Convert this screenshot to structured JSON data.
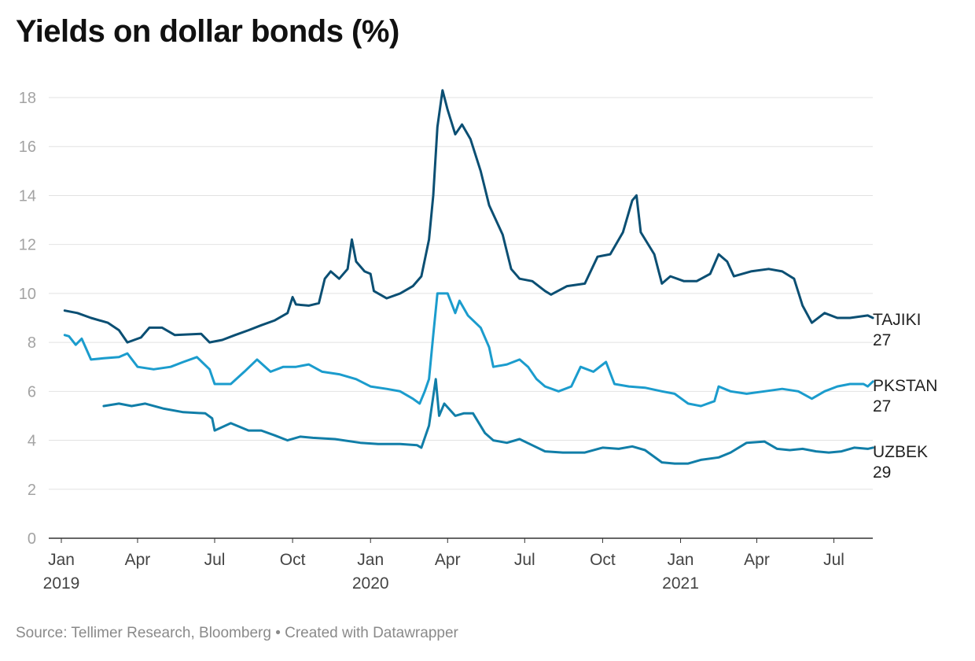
{
  "title": "Yields on dollar bonds (%)",
  "footer": {
    "source": "Source: Tellimer Research, Bloomberg",
    "separator": "•",
    "credit": "Created with Datawrapper"
  },
  "chart_data": {
    "type": "line",
    "title": "Yields on dollar bonds (%)",
    "ylim": [
      0,
      18
    ],
    "yticks": [
      0,
      2,
      4,
      6,
      8,
      10,
      12,
      14,
      16,
      18
    ],
    "grid": true,
    "legend": "inline labels at right end of lines",
    "xlim": [
      "2019-01-01",
      "2021-08-31"
    ],
    "xticks": [
      {
        "date": "2019-01-01",
        "label": "Jan",
        "year": "2019"
      },
      {
        "date": "2019-04-01",
        "label": "Apr",
        "year": ""
      },
      {
        "date": "2019-07-01",
        "label": "Jul",
        "year": ""
      },
      {
        "date": "2019-10-01",
        "label": "Oct",
        "year": ""
      },
      {
        "date": "2020-01-01",
        "label": "Jan",
        "year": "2020"
      },
      {
        "date": "2020-04-01",
        "label": "Apr",
        "year": ""
      },
      {
        "date": "2020-07-01",
        "label": "Jul",
        "year": ""
      },
      {
        "date": "2020-10-01",
        "label": "Oct",
        "year": ""
      },
      {
        "date": "2021-01-01",
        "label": "Jan",
        "year": "2021"
      },
      {
        "date": "2021-04-01",
        "label": "Apr",
        "year": ""
      },
      {
        "date": "2021-07-01",
        "label": "Jul",
        "year": ""
      }
    ],
    "series": [
      {
        "name": "TAJIKI 27",
        "label_lines": [
          "TAJIKI",
          "27"
        ],
        "color": "#0b4f73",
        "points": [
          [
            "2019-01-05",
            9.3
          ],
          [
            "2019-01-20",
            9.2
          ],
          [
            "2019-02-05",
            9.0
          ],
          [
            "2019-02-25",
            8.8
          ],
          [
            "2019-03-10",
            8.5
          ],
          [
            "2019-03-20",
            8.0
          ],
          [
            "2019-04-05",
            8.2
          ],
          [
            "2019-04-15",
            8.6
          ],
          [
            "2019-04-30",
            8.6
          ],
          [
            "2019-05-15",
            8.3
          ],
          [
            "2019-06-15",
            8.35
          ],
          [
            "2019-06-25",
            8.0
          ],
          [
            "2019-07-10",
            8.1
          ],
          [
            "2019-07-25",
            8.3
          ],
          [
            "2019-08-10",
            8.5
          ],
          [
            "2019-08-25",
            8.7
          ],
          [
            "2019-09-10",
            8.9
          ],
          [
            "2019-09-25",
            9.2
          ],
          [
            "2019-10-01",
            9.85
          ],
          [
            "2019-10-05",
            9.55
          ],
          [
            "2019-10-20",
            9.5
          ],
          [
            "2019-11-01",
            9.6
          ],
          [
            "2019-11-08",
            10.6
          ],
          [
            "2019-11-15",
            10.9
          ],
          [
            "2019-11-25",
            10.6
          ],
          [
            "2019-12-05",
            11.0
          ],
          [
            "2019-12-10",
            12.2
          ],
          [
            "2019-12-15",
            11.3
          ],
          [
            "2019-12-25",
            10.9
          ],
          [
            "2020-01-01",
            10.8
          ],
          [
            "2020-01-05",
            10.1
          ],
          [
            "2020-01-20",
            9.8
          ],
          [
            "2020-02-05",
            10.0
          ],
          [
            "2020-02-20",
            10.3
          ],
          [
            "2020-03-01",
            10.7
          ],
          [
            "2020-03-10",
            12.2
          ],
          [
            "2020-03-15",
            14.0
          ],
          [
            "2020-03-20",
            16.8
          ],
          [
            "2020-03-26",
            18.3
          ],
          [
            "2020-04-01",
            17.5
          ],
          [
            "2020-04-10",
            16.5
          ],
          [
            "2020-04-18",
            16.9
          ],
          [
            "2020-04-28",
            16.3
          ],
          [
            "2020-05-10",
            15.0
          ],
          [
            "2020-05-20",
            13.6
          ],
          [
            "2020-06-05",
            12.4
          ],
          [
            "2020-06-15",
            11.0
          ],
          [
            "2020-06-25",
            10.6
          ],
          [
            "2020-07-10",
            10.5
          ],
          [
            "2020-07-25",
            10.1
          ],
          [
            "2020-08-01",
            9.95
          ],
          [
            "2020-08-20",
            10.3
          ],
          [
            "2020-09-10",
            10.4
          ],
          [
            "2020-09-25",
            11.5
          ],
          [
            "2020-10-10",
            11.6
          ],
          [
            "2020-10-25",
            12.5
          ],
          [
            "2020-11-05",
            13.8
          ],
          [
            "2020-11-10",
            14.0
          ],
          [
            "2020-11-15",
            12.5
          ],
          [
            "2020-12-01",
            11.6
          ],
          [
            "2020-12-10",
            10.4
          ],
          [
            "2020-12-20",
            10.7
          ],
          [
            "2021-01-05",
            10.5
          ],
          [
            "2021-01-20",
            10.5
          ],
          [
            "2021-02-05",
            10.8
          ],
          [
            "2021-02-15",
            11.6
          ],
          [
            "2021-02-25",
            11.3
          ],
          [
            "2021-03-05",
            10.7
          ],
          [
            "2021-03-25",
            10.9
          ],
          [
            "2021-04-15",
            11.0
          ],
          [
            "2021-05-01",
            10.9
          ],
          [
            "2021-05-15",
            10.6
          ],
          [
            "2021-05-25",
            9.5
          ],
          [
            "2021-06-05",
            8.8
          ],
          [
            "2021-06-20",
            9.2
          ],
          [
            "2021-07-05",
            9.0
          ],
          [
            "2021-07-20",
            9.0
          ],
          [
            "2021-08-10",
            9.1
          ],
          [
            "2021-08-16",
            9.0
          ]
        ]
      },
      {
        "name": "PKSTAN 27",
        "label_lines": [
          "PKSTAN",
          "27"
        ],
        "color": "#1b9ccd",
        "points": [
          [
            "2019-01-05",
            8.3
          ],
          [
            "2019-01-10",
            8.25
          ],
          [
            "2019-01-18",
            7.9
          ],
          [
            "2019-01-25",
            8.15
          ],
          [
            "2019-02-05",
            7.3
          ],
          [
            "2019-02-20",
            7.35
          ],
          [
            "2019-03-10",
            7.4
          ],
          [
            "2019-03-20",
            7.55
          ],
          [
            "2019-04-01",
            7.0
          ],
          [
            "2019-04-20",
            6.9
          ],
          [
            "2019-05-10",
            7.0
          ],
          [
            "2019-05-25",
            7.2
          ],
          [
            "2019-06-10",
            7.4
          ],
          [
            "2019-06-25",
            6.9
          ],
          [
            "2019-07-01",
            6.3
          ],
          [
            "2019-07-20",
            6.3
          ],
          [
            "2019-08-05",
            6.8
          ],
          [
            "2019-08-20",
            7.3
          ],
          [
            "2019-09-05",
            6.8
          ],
          [
            "2019-09-20",
            7.0
          ],
          [
            "2019-10-05",
            7.0
          ],
          [
            "2019-10-20",
            7.1
          ],
          [
            "2019-11-05",
            6.8
          ],
          [
            "2019-11-25",
            6.7
          ],
          [
            "2019-12-15",
            6.5
          ],
          [
            "2020-01-01",
            6.2
          ],
          [
            "2020-01-20",
            6.1
          ],
          [
            "2020-02-05",
            6.0
          ],
          [
            "2020-02-20",
            5.7
          ],
          [
            "2020-02-28",
            5.5
          ],
          [
            "2020-03-05",
            6.0
          ],
          [
            "2020-03-10",
            6.5
          ],
          [
            "2020-03-15",
            8.3
          ],
          [
            "2020-03-20",
            10.0
          ],
          [
            "2020-04-01",
            10.0
          ],
          [
            "2020-04-10",
            9.2
          ],
          [
            "2020-04-15",
            9.7
          ],
          [
            "2020-04-25",
            9.1
          ],
          [
            "2020-05-10",
            8.6
          ],
          [
            "2020-05-20",
            7.8
          ],
          [
            "2020-05-25",
            7.0
          ],
          [
            "2020-06-10",
            7.1
          ],
          [
            "2020-06-25",
            7.3
          ],
          [
            "2020-07-05",
            7.0
          ],
          [
            "2020-07-15",
            6.5
          ],
          [
            "2020-07-25",
            6.2
          ],
          [
            "2020-08-10",
            6.0
          ],
          [
            "2020-08-25",
            6.2
          ],
          [
            "2020-09-05",
            7.0
          ],
          [
            "2020-09-20",
            6.8
          ],
          [
            "2020-10-05",
            7.2
          ],
          [
            "2020-10-15",
            6.3
          ],
          [
            "2020-11-01",
            6.2
          ],
          [
            "2020-11-20",
            6.15
          ],
          [
            "2020-12-10",
            6.0
          ],
          [
            "2020-12-25",
            5.9
          ],
          [
            "2021-01-10",
            5.5
          ],
          [
            "2021-01-25",
            5.4
          ],
          [
            "2021-02-10",
            5.6
          ],
          [
            "2021-02-15",
            6.2
          ],
          [
            "2021-03-01",
            6.0
          ],
          [
            "2021-03-20",
            5.9
          ],
          [
            "2021-04-10",
            6.0
          ],
          [
            "2021-05-01",
            6.1
          ],
          [
            "2021-05-20",
            6.0
          ],
          [
            "2021-06-05",
            5.7
          ],
          [
            "2021-06-20",
            6.0
          ],
          [
            "2021-07-05",
            6.2
          ],
          [
            "2021-07-20",
            6.3
          ],
          [
            "2021-08-05",
            6.3
          ],
          [
            "2021-08-10",
            6.2
          ],
          [
            "2021-08-16",
            6.4
          ]
        ]
      },
      {
        "name": "UZBEK 29",
        "label_lines": [
          "UZBEK",
          "29"
        ],
        "color": "#117ea8",
        "points": [
          [
            "2019-02-20",
            5.4
          ],
          [
            "2019-03-10",
            5.5
          ],
          [
            "2019-03-25",
            5.4
          ],
          [
            "2019-04-10",
            5.5
          ],
          [
            "2019-05-01",
            5.3
          ],
          [
            "2019-05-25",
            5.15
          ],
          [
            "2019-06-20",
            5.1
          ],
          [
            "2019-06-28",
            4.9
          ],
          [
            "2019-07-01",
            4.4
          ],
          [
            "2019-07-20",
            4.7
          ],
          [
            "2019-08-10",
            4.4
          ],
          [
            "2019-08-25",
            4.4
          ],
          [
            "2019-09-10",
            4.2
          ],
          [
            "2019-09-25",
            4.0
          ],
          [
            "2019-10-10",
            4.15
          ],
          [
            "2019-10-25",
            4.1
          ],
          [
            "2019-11-20",
            4.05
          ],
          [
            "2019-12-20",
            3.9
          ],
          [
            "2020-01-10",
            3.85
          ],
          [
            "2020-02-05",
            3.85
          ],
          [
            "2020-02-25",
            3.8
          ],
          [
            "2020-03-01",
            3.7
          ],
          [
            "2020-03-10",
            4.6
          ],
          [
            "2020-03-18",
            6.5
          ],
          [
            "2020-03-22",
            5.0
          ],
          [
            "2020-03-28",
            5.5
          ],
          [
            "2020-04-10",
            5.0
          ],
          [
            "2020-04-20",
            5.1
          ],
          [
            "2020-05-01",
            5.1
          ],
          [
            "2020-05-15",
            4.3
          ],
          [
            "2020-05-25",
            4.0
          ],
          [
            "2020-06-10",
            3.9
          ],
          [
            "2020-06-25",
            4.05
          ],
          [
            "2020-07-10",
            3.8
          ],
          [
            "2020-07-25",
            3.55
          ],
          [
            "2020-08-15",
            3.5
          ],
          [
            "2020-09-10",
            3.5
          ],
          [
            "2020-10-01",
            3.7
          ],
          [
            "2020-10-20",
            3.65
          ],
          [
            "2020-11-05",
            3.75
          ],
          [
            "2020-11-20",
            3.6
          ],
          [
            "2020-12-10",
            3.1
          ],
          [
            "2020-12-25",
            3.05
          ],
          [
            "2021-01-10",
            3.05
          ],
          [
            "2021-01-25",
            3.2
          ],
          [
            "2021-02-15",
            3.3
          ],
          [
            "2021-03-01",
            3.5
          ],
          [
            "2021-03-20",
            3.9
          ],
          [
            "2021-04-10",
            3.95
          ],
          [
            "2021-04-25",
            3.65
          ],
          [
            "2021-05-10",
            3.6
          ],
          [
            "2021-05-25",
            3.65
          ],
          [
            "2021-06-10",
            3.55
          ],
          [
            "2021-06-25",
            3.5
          ],
          [
            "2021-07-10",
            3.55
          ],
          [
            "2021-07-25",
            3.7
          ],
          [
            "2021-08-10",
            3.65
          ],
          [
            "2021-08-16",
            3.7
          ]
        ]
      }
    ]
  }
}
